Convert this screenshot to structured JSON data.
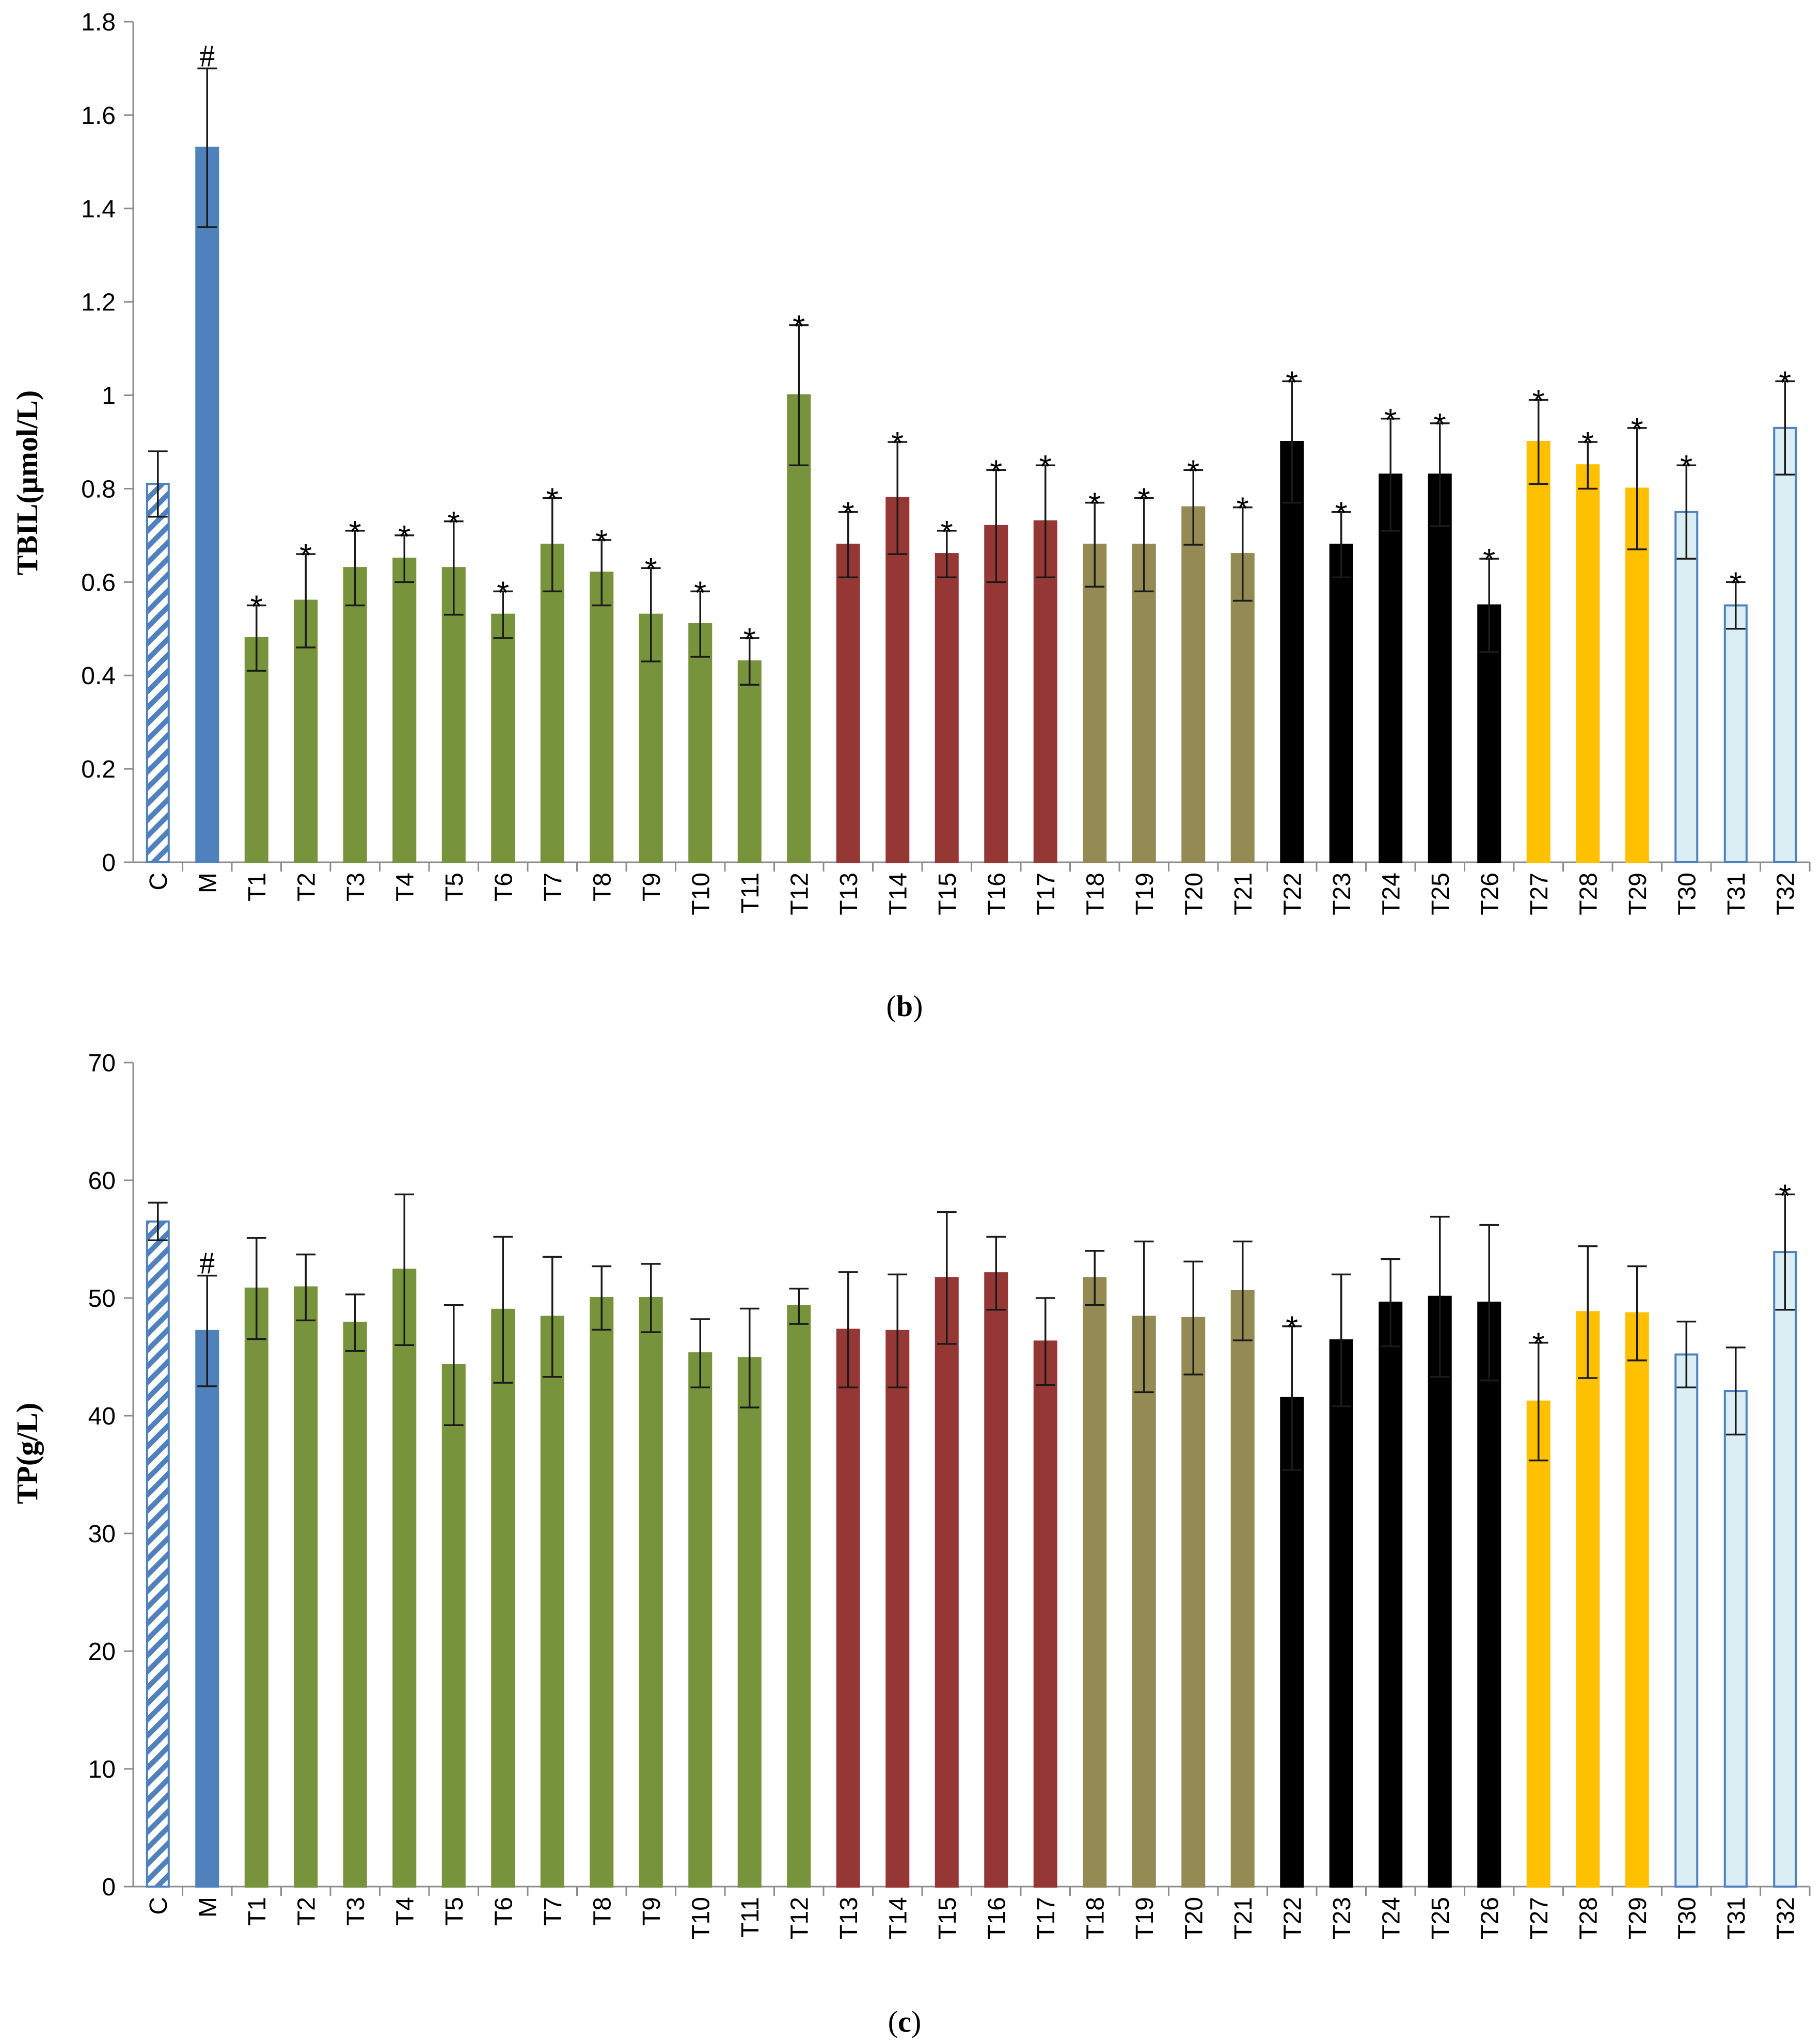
{
  "chart_data": [
    {
      "type": "bar",
      "panel_label": "b",
      "ylabel": "TBIL(μmol/L)",
      "ylim": [
        0,
        1.8
      ],
      "yticks": [
        "0",
        "0.2",
        "0.4",
        "0.6",
        "0.8",
        "1",
        "1.2",
        "1.4",
        "1.6",
        "1.8"
      ],
      "categories": [
        "C",
        "M",
        "T1",
        "T2",
        "T3",
        "T4",
        "T5",
        "T6",
        "T7",
        "T8",
        "T9",
        "T10",
        "T11",
        "T12",
        "T13",
        "T14",
        "T15",
        "T16",
        "T17",
        "T18",
        "T19",
        "T20",
        "T21",
        "T22",
        "T23",
        "T24",
        "T25",
        "T26",
        "T27",
        "T28",
        "T29",
        "T30",
        "T31",
        "T32"
      ],
      "values": [
        0.81,
        1.53,
        0.48,
        0.56,
        0.63,
        0.65,
        0.63,
        0.53,
        0.68,
        0.62,
        0.53,
        0.51,
        0.43,
        1.0,
        0.68,
        0.78,
        0.66,
        0.72,
        0.73,
        0.68,
        0.68,
        0.76,
        0.66,
        0.9,
        0.68,
        0.83,
        0.83,
        0.55,
        0.9,
        0.85,
        0.8,
        0.75,
        0.55,
        0.93
      ],
      "errors": [
        0.07,
        0.17,
        0.07,
        0.1,
        0.08,
        0.05,
        0.1,
        0.05,
        0.1,
        0.07,
        0.1,
        0.07,
        0.05,
        0.15,
        0.07,
        0.12,
        0.05,
        0.12,
        0.12,
        0.09,
        0.1,
        0.08,
        0.1,
        0.13,
        0.07,
        0.12,
        0.11,
        0.1,
        0.09,
        0.05,
        0.13,
        0.1,
        0.05,
        0.1
      ],
      "markers": [
        "",
        "#",
        "*",
        "*",
        "*",
        "*",
        "*",
        "*",
        "*",
        "*",
        "*",
        "*",
        "*",
        "*",
        "*",
        "*",
        "*",
        "*",
        "*",
        "*",
        "*",
        "*",
        "*",
        "*",
        "*",
        "*",
        "*",
        "*",
        "*",
        "*",
        "*",
        "*",
        "*",
        "*"
      ]
    },
    {
      "type": "bar",
      "panel_label": "c",
      "ylabel": "TP(g/L)",
      "ylim": [
        0,
        70
      ],
      "yticks": [
        "0",
        "10",
        "20",
        "30",
        "40",
        "50",
        "60",
        "70"
      ],
      "categories": [
        "C",
        "M",
        "T1",
        "T2",
        "T3",
        "T4",
        "T5",
        "T6",
        "T7",
        "T8",
        "T9",
        "T10",
        "T11",
        "T12",
        "T13",
        "T14",
        "T15",
        "T16",
        "T17",
        "T18",
        "T19",
        "T20",
        "T21",
        "T22",
        "T23",
        "T24",
        "T25",
        "T26",
        "T27",
        "T28",
        "T29",
        "T30",
        "T31",
        "T32"
      ],
      "values": [
        56.5,
        47.2,
        50.8,
        50.9,
        47.9,
        52.4,
        44.3,
        49.0,
        48.4,
        50.0,
        50.0,
        45.3,
        44.9,
        49.3,
        47.3,
        47.2,
        51.7,
        52.1,
        46.3,
        51.7,
        48.4,
        48.3,
        50.6,
        41.5,
        46.4,
        49.6,
        50.1,
        49.6,
        41.2,
        48.8,
        48.7,
        45.2,
        42.1,
        53.9
      ],
      "errors": [
        1.6,
        4.7,
        4.3,
        2.8,
        2.4,
        6.4,
        5.1,
        6.2,
        5.1,
        2.7,
        2.9,
        2.9,
        4.2,
        1.5,
        4.9,
        4.8,
        5.6,
        3.1,
        3.7,
        2.3,
        6.4,
        4.8,
        4.2,
        6.1,
        5.6,
        3.7,
        6.8,
        6.6,
        5.0,
        5.6,
        4.0,
        2.8,
        3.7,
        4.9
      ],
      "markers": [
        "",
        "#",
        "",
        "",
        "",
        "",
        "",
        "",
        "",
        "",
        "",
        "",
        "",
        "",
        "",
        "",
        "",
        "",
        "",
        "",
        "",
        "",
        "",
        "*",
        "",
        "",
        "",
        "",
        "*",
        "",
        "",
        "",
        "",
        "*"
      ]
    }
  ],
  "series_styles": [
    {
      "groups": "C",
      "fill": "#ffffff",
      "stroke": "#4f81bd",
      "pattern": "hatch"
    },
    {
      "groups": "M",
      "fill": "#4f81bd",
      "stroke": "#4f81bd"
    },
    {
      "groups": "T1-T12",
      "fill": "#77933c",
      "stroke": "#77933c"
    },
    {
      "groups": "T13-T17",
      "fill": "#953735",
      "stroke": "#953735"
    },
    {
      "groups": "T18-T21",
      "fill": "#948a54",
      "stroke": "#948a54"
    },
    {
      "groups": "T22-T26",
      "fill": "#000000",
      "stroke": "#000000"
    },
    {
      "groups": "T27-T29",
      "fill": "#ffc000",
      "stroke": "#ffc000"
    },
    {
      "groups": "T30-T32",
      "fill": "#dbeef4",
      "stroke": "#4f81bd"
    }
  ]
}
